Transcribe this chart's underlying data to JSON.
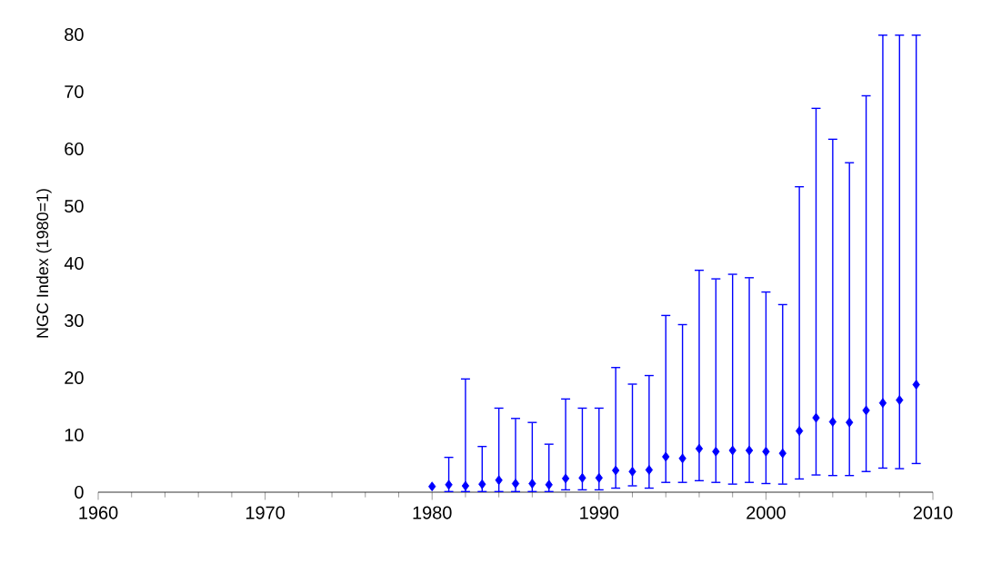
{
  "chart_data": {
    "type": "scatter",
    "ylabel": "NGC Index (1980=1)",
    "color": "#0000ff",
    "marker": "diamond",
    "x": [
      1980,
      1981,
      1982,
      1983,
      1984,
      1985,
      1986,
      1987,
      1988,
      1989,
      1990,
      1991,
      1992,
      1993,
      1994,
      1995,
      1996,
      1997,
      1998,
      1999,
      2000,
      2001,
      2002,
      2003,
      2004,
      2005,
      2006,
      2007,
      2008,
      2009
    ],
    "values": [
      1,
      1.3,
      1.1,
      1.4,
      2.1,
      1.5,
      1.5,
      1.3,
      2.4,
      2.5,
      2.5,
      3.8,
      3.6,
      3.9,
      6.2,
      5.9,
      7.6,
      7.1,
      7.3,
      7.3,
      7.1,
      6.8,
      10.7,
      13,
      12.3,
      12.2,
      14.3,
      15.6,
      16.1,
      18.8
    ],
    "errors": [
      null,
      [
        0,
        6.2
      ],
      [
        0,
        19.9
      ],
      [
        0,
        8.1
      ],
      [
        0,
        14.8
      ],
      [
        0,
        13
      ],
      [
        0,
        12.3
      ],
      [
        0,
        8.5
      ],
      [
        0.3,
        16.4
      ],
      [
        0.3,
        14.8
      ],
      [
        0.3,
        14.8
      ],
      [
        0.6,
        21.9
      ],
      [
        1,
        19
      ],
      [
        0.6,
        20.5
      ],
      [
        1.6,
        31
      ],
      [
        1.6,
        29.4
      ],
      [
        1.9,
        38.9
      ],
      [
        1.6,
        37.4
      ],
      [
        1.3,
        38.2
      ],
      [
        1.6,
        37.6
      ],
      [
        1.4,
        35.1
      ],
      [
        1.3,
        32.9
      ],
      [
        2.2,
        53.5
      ],
      [
        2.9,
        67.2
      ],
      [
        2.8,
        61.8
      ],
      [
        2.8,
        57.7
      ],
      [
        3.5,
        69.4
      ],
      [
        4.1,
        80
      ],
      [
        4,
        80
      ],
      [
        4.9,
        80
      ]
    ],
    "xlim": [
      1960,
      2010
    ],
    "xticks": [
      1960,
      1970,
      1980,
      1990,
      2000,
      2010
    ],
    "ylim": [
      0,
      80
    ],
    "yticks": [
      0,
      10,
      20,
      30,
      40,
      50,
      60,
      70,
      80
    ]
  }
}
